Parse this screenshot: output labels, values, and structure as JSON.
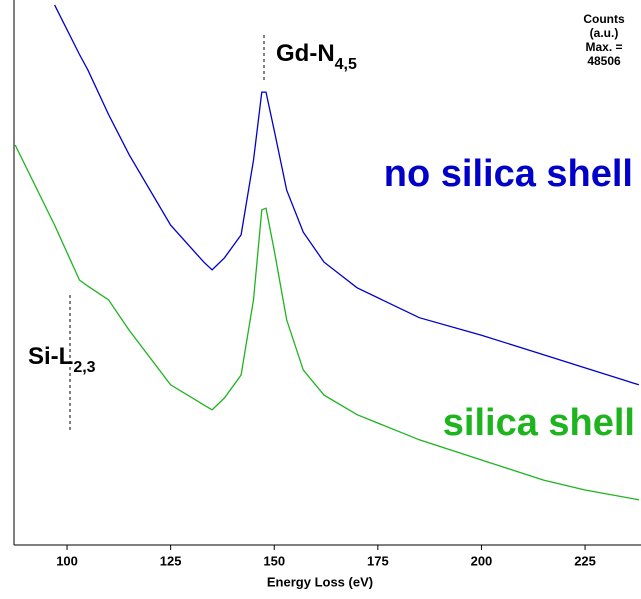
{
  "chart_data": {
    "type": "line",
    "x_label": "Energy Loss (eV)",
    "x": [
      87.5,
      97,
      103,
      105,
      110,
      115,
      125,
      133,
      135,
      138,
      142,
      145,
      147,
      148,
      150,
      153,
      157,
      162,
      170,
      185,
      200,
      215,
      225,
      238
    ],
    "xlim": [
      87.2,
      238.5
    ],
    "xticks": [
      100,
      125,
      150,
      175,
      200,
      225
    ],
    "ylim": [
      0,
      100
    ],
    "series": [
      {
        "name": "no silica shell",
        "color": "#0000c8",
        "values": [
          null,
          99.1,
          90.0,
          87.2,
          79.0,
          71.6,
          58.7,
          51.9,
          50.5,
          52.7,
          56.9,
          70.6,
          83.1,
          83.1,
          76.1,
          65.1,
          57.4,
          51.9,
          47.2,
          41.7,
          38.5,
          34.9,
          32.5,
          29.4
        ]
      },
      {
        "name": "silica shell",
        "color": "#1eb41e",
        "values": [
          73.4,
          58.7,
          48.6,
          47.5,
          45.0,
          39.4,
          29.4,
          25.7,
          24.8,
          27.0,
          31.2,
          45.0,
          61.5,
          61.8,
          54.1,
          41.3,
          32.1,
          27.5,
          23.9,
          19.3,
          15.6,
          11.9,
          10.1,
          8.3
        ]
      }
    ],
    "annotations": [
      {
        "text": "Gd-N",
        "subscript": "4,5"
      },
      {
        "text": "Si-L",
        "subscript": "2,3"
      }
    ],
    "counts_note": [
      "Counts",
      "(a.u.)",
      "Max. =",
      "48506"
    ]
  }
}
